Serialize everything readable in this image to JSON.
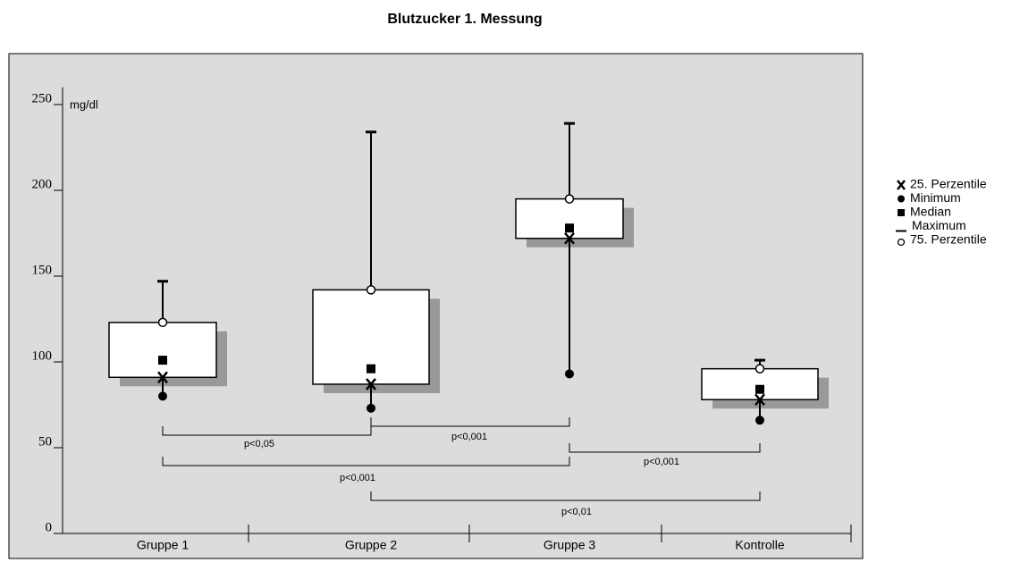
{
  "chart_data": {
    "type": "box",
    "title": "Blutzucker 1. Messung",
    "y_label": "mg/dl",
    "categories": [
      "Gruppe 1",
      "Gruppe 2",
      "Gruppe 3",
      "Kontrolle"
    ],
    "min": [
      80,
      73,
      93,
      66
    ],
    "q1": [
      91,
      87,
      172,
      78
    ],
    "median": [
      101,
      96,
      178,
      84
    ],
    "q3": [
      123,
      142,
      195,
      96
    ],
    "max": [
      147,
      234,
      239,
      101
    ],
    "ylim": [
      0,
      260
    ],
    "yticks": [
      0,
      50,
      100,
      150,
      200,
      250
    ],
    "legend": [
      "25. Perzentile",
      "Minimum",
      "Median",
      "Maximum",
      "75. Perzentile"
    ],
    "annotations": [
      "p<0,05",
      "p<0,001",
      "p<0,001",
      "p<0,001",
      "p<0,01"
    ]
  }
}
